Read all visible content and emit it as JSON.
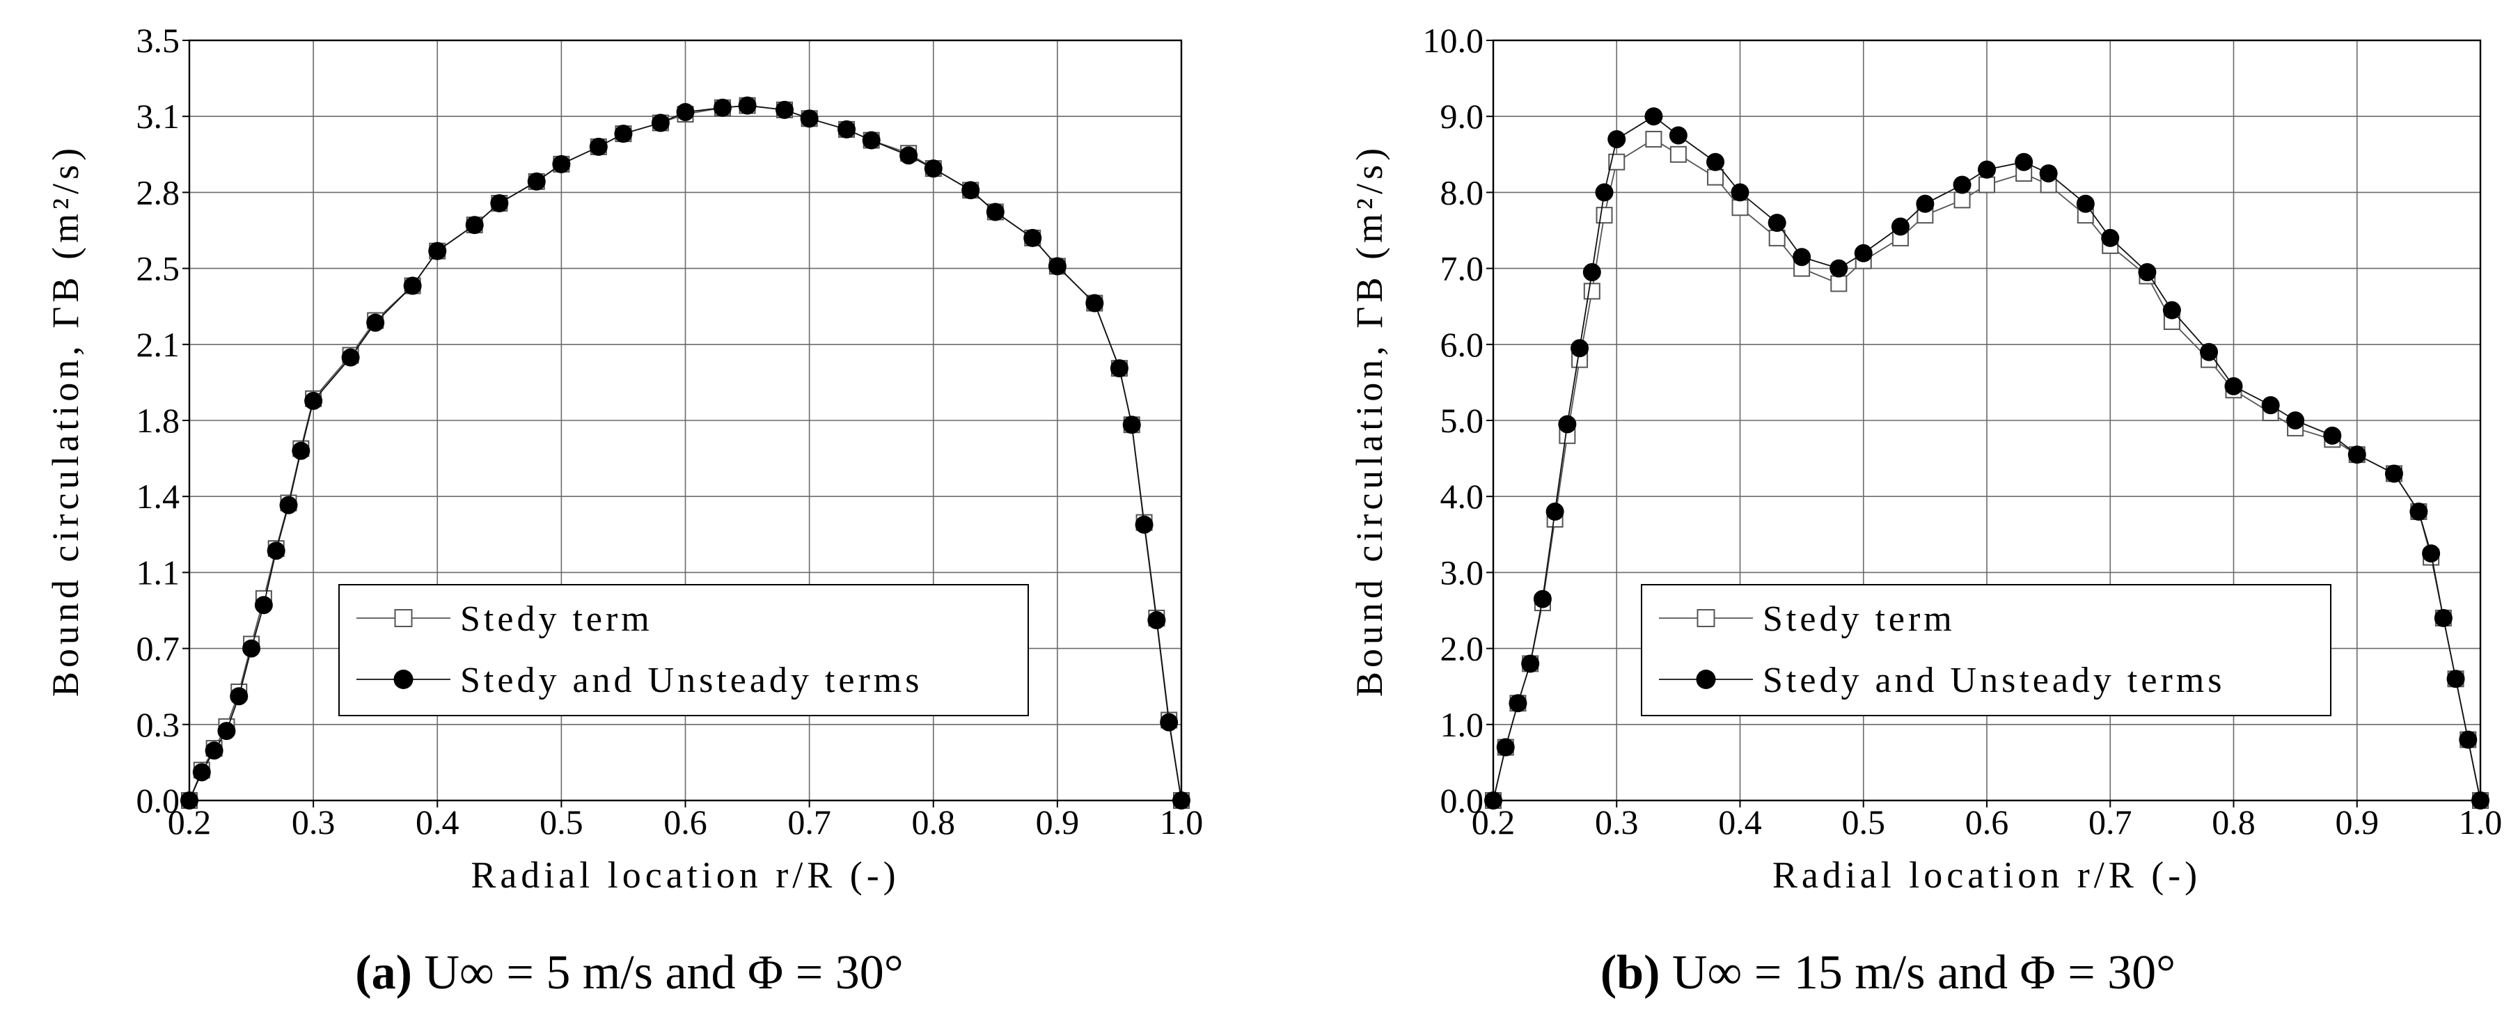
{
  "figure": {
    "panels": [
      {
        "caption": {
          "label": "(a)",
          "text": "U∞ = 5 m/s and Φ = 30°"
        }
      },
      {
        "caption": {
          "label": "(b)",
          "text": "U∞ = 15 m/s and Φ = 30°"
        }
      }
    ]
  },
  "chart_data": [
    {
      "type": "line",
      "title": "(a) U∞ = 5 m/s and Φ = 30°",
      "xlabel": "Radial location r/R (-)",
      "ylabel": "Bound circulation, ΓB (m²/s)",
      "xlim": [
        0.2,
        1.0
      ],
      "ylim": [
        0.0,
        3.5
      ],
      "xticks": [
        "0.2",
        "0.3",
        "0.4",
        "0.5",
        "0.6",
        "0.7",
        "0.8",
        "0.9",
        "1.0"
      ],
      "yticks": [
        "0.0",
        "0.3",
        "0.7",
        "1.1",
        "1.4",
        "1.8",
        "2.1",
        "2.5",
        "2.8",
        "3.1",
        "3.5"
      ],
      "grid": true,
      "legend": "bottom-center",
      "series": [
        {
          "name": "Stedy term",
          "marker": "open-square",
          "x": [
            0.2,
            0.21,
            0.22,
            0.23,
            0.24,
            0.25,
            0.26,
            0.27,
            0.28,
            0.29,
            0.3,
            0.33,
            0.35,
            0.38,
            0.4,
            0.43,
            0.45,
            0.48,
            0.5,
            0.53,
            0.55,
            0.58,
            0.6,
            0.63,
            0.65,
            0.68,
            0.7,
            0.73,
            0.75,
            0.78,
            0.8,
            0.83,
            0.85,
            0.88,
            0.9,
            0.93,
            0.95,
            0.96,
            0.97,
            0.98,
            0.99,
            1.0
          ],
          "y": [
            0.0,
            0.14,
            0.24,
            0.34,
            0.5,
            0.72,
            0.93,
            1.16,
            1.37,
            1.62,
            1.85,
            2.05,
            2.21,
            2.37,
            2.53,
            2.65,
            2.75,
            2.85,
            2.93,
            3.01,
            3.07,
            3.12,
            3.16,
            3.19,
            3.2,
            3.18,
            3.14,
            3.09,
            3.04,
            2.98,
            2.91,
            2.81,
            2.71,
            2.59,
            2.46,
            2.29,
            1.99,
            1.73,
            1.28,
            0.84,
            0.37,
            0.0
          ]
        },
        {
          "name": "Stedy and Unsteady terms",
          "marker": "filled-circle",
          "x": [
            0.2,
            0.21,
            0.22,
            0.23,
            0.24,
            0.25,
            0.26,
            0.27,
            0.28,
            0.29,
            0.3,
            0.33,
            0.35,
            0.38,
            0.4,
            0.43,
            0.45,
            0.48,
            0.5,
            0.53,
            0.55,
            0.58,
            0.6,
            0.63,
            0.65,
            0.68,
            0.7,
            0.73,
            0.75,
            0.78,
            0.8,
            0.83,
            0.85,
            0.88,
            0.9,
            0.93,
            0.95,
            0.96,
            0.97,
            0.98,
            0.99,
            1.0
          ],
          "y": [
            0.0,
            0.13,
            0.23,
            0.32,
            0.48,
            0.7,
            0.9,
            1.15,
            1.36,
            1.61,
            1.84,
            2.04,
            2.2,
            2.37,
            2.53,
            2.65,
            2.75,
            2.85,
            2.93,
            3.01,
            3.07,
            3.12,
            3.17,
            3.19,
            3.2,
            3.18,
            3.14,
            3.09,
            3.04,
            2.97,
            2.91,
            2.81,
            2.71,
            2.59,
            2.46,
            2.29,
            1.99,
            1.73,
            1.27,
            0.83,
            0.36,
            0.0
          ]
        }
      ]
    },
    {
      "type": "line",
      "title": "(b) U∞ = 15 m/s and Φ = 30°",
      "xlabel": "Radial location r/R (-)",
      "ylabel": "Bound circulation, ΓB (m²/s)",
      "xlim": [
        0.2,
        1.0
      ],
      "ylim": [
        0.0,
        10.0
      ],
      "xticks": [
        "0.2",
        "0.3",
        "0.4",
        "0.5",
        "0.6",
        "0.7",
        "0.8",
        "0.9",
        "1.0"
      ],
      "yticks": [
        "0.0",
        "1.0",
        "2.0",
        "3.0",
        "4.0",
        "5.0",
        "6.0",
        "7.0",
        "8.0",
        "9.0",
        "10.0"
      ],
      "grid": true,
      "legend": "bottom-center",
      "series": [
        {
          "name": "Stedy term",
          "marker": "open-square",
          "x": [
            0.2,
            0.21,
            0.22,
            0.23,
            0.24,
            0.25,
            0.26,
            0.27,
            0.28,
            0.29,
            0.3,
            0.33,
            0.35,
            0.38,
            0.4,
            0.43,
            0.45,
            0.48,
            0.5,
            0.53,
            0.55,
            0.58,
            0.6,
            0.63,
            0.65,
            0.68,
            0.7,
            0.73,
            0.75,
            0.78,
            0.8,
            0.83,
            0.85,
            0.88,
            0.9,
            0.93,
            0.95,
            0.96,
            0.97,
            0.98,
            0.99,
            1.0
          ],
          "y": [
            0.0,
            0.7,
            1.28,
            1.8,
            2.6,
            3.7,
            4.8,
            5.8,
            6.7,
            7.7,
            8.4,
            8.7,
            8.5,
            8.2,
            7.8,
            7.4,
            7.0,
            6.8,
            7.1,
            7.4,
            7.7,
            7.9,
            8.1,
            8.25,
            8.1,
            7.7,
            7.3,
            6.9,
            6.3,
            5.8,
            5.4,
            5.1,
            4.9,
            4.75,
            4.55,
            4.3,
            3.8,
            3.2,
            2.4,
            1.6,
            0.8,
            0.0
          ]
        },
        {
          "name": "Stedy and Unsteady terms",
          "marker": "filled-circle",
          "x": [
            0.2,
            0.21,
            0.22,
            0.23,
            0.24,
            0.25,
            0.26,
            0.27,
            0.28,
            0.29,
            0.3,
            0.33,
            0.35,
            0.38,
            0.4,
            0.43,
            0.45,
            0.48,
            0.5,
            0.53,
            0.55,
            0.58,
            0.6,
            0.63,
            0.65,
            0.68,
            0.7,
            0.73,
            0.75,
            0.78,
            0.8,
            0.83,
            0.85,
            0.88,
            0.9,
            0.93,
            0.95,
            0.96,
            0.97,
            0.98,
            0.99,
            1.0
          ],
          "y": [
            0.0,
            0.7,
            1.28,
            1.8,
            2.65,
            3.8,
            4.95,
            5.95,
            6.95,
            8.0,
            8.7,
            9.0,
            8.75,
            8.4,
            8.0,
            7.6,
            7.15,
            7.0,
            7.2,
            7.55,
            7.85,
            8.1,
            8.3,
            8.4,
            8.25,
            7.85,
            7.4,
            6.95,
            6.45,
            5.9,
            5.45,
            5.2,
            5.0,
            4.8,
            4.55,
            4.3,
            3.8,
            3.25,
            2.4,
            1.6,
            0.8,
            0.0
          ]
        }
      ]
    }
  ]
}
